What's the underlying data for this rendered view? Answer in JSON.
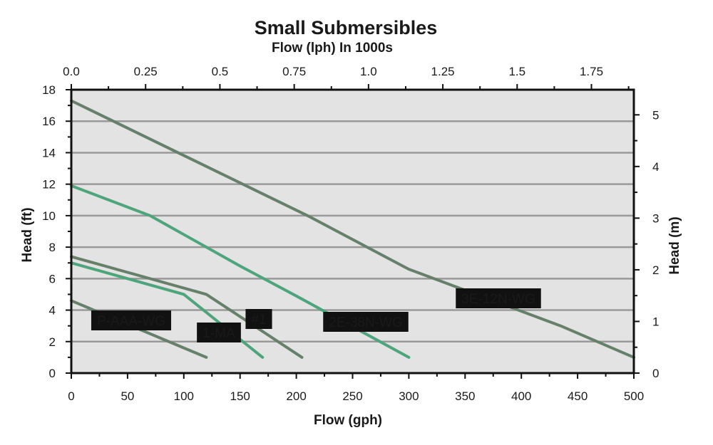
{
  "chart_data": {
    "type": "line",
    "title": "Small Submersibles",
    "subtitle": "Flow (lph) In 1000s",
    "xlabel": "Flow (gph)",
    "ylabel": "Head (ft)",
    "ylabel_right": "Head (m)",
    "xlim": [
      0,
      500
    ],
    "ylim": [
      0,
      18
    ],
    "x_ticks": [
      "0",
      "50",
      "100",
      "150",
      "200",
      "250",
      "300",
      "350",
      "400",
      "450",
      "500"
    ],
    "y_ticks": [
      "0",
      "2",
      "4",
      "6",
      "8",
      "10",
      "12",
      "14",
      "16",
      "18"
    ],
    "x2_ticks": [
      {
        "value": 0.0,
        "label": "0.0"
      },
      {
        "value": 0.25,
        "label": "0.25"
      },
      {
        "value": 0.5,
        "label": "0.5"
      },
      {
        "value": 0.75,
        "label": "0.75"
      },
      {
        "value": 1.0,
        "label": "1.0"
      },
      {
        "value": 1.25,
        "label": "1.25"
      },
      {
        "value": 1.5,
        "label": "1.5"
      },
      {
        "value": 1.75,
        "label": "1.75"
      }
    ],
    "y2_ticks": [
      {
        "value": 0,
        "label": "0"
      },
      {
        "value": 1,
        "label": "1"
      },
      {
        "value": 2,
        "label": "2"
      },
      {
        "value": 3,
        "label": "3"
      },
      {
        "value": 4,
        "label": "4"
      },
      {
        "value": 5,
        "label": "5"
      }
    ],
    "grid": "horizontal",
    "colors": {
      "plot_bg": "#e3e3e3",
      "grid": "#999999",
      "frame": "#111111",
      "label_bg": "#111111",
      "label_text": "#ffffff",
      "green": "#4ea57b",
      "gray_green": "#66806a"
    },
    "series": [
      {
        "name": "P-AAA-WG",
        "color": "#66806a",
        "points": [
          [
            0,
            4.6
          ],
          [
            120,
            1.0
          ]
        ]
      },
      {
        "name": "1-MA",
        "color": "#4ea57b",
        "points": [
          [
            0,
            7.0
          ],
          [
            50,
            6.0
          ],
          [
            100,
            5.0
          ],
          [
            170,
            1.0
          ]
        ]
      },
      {
        "name": "#1",
        "color": "#66806a",
        "points": [
          [
            0,
            7.4
          ],
          [
            50,
            6.4
          ],
          [
            100,
            5.4
          ],
          [
            120,
            5.0
          ],
          [
            205,
            1.0
          ]
        ]
      },
      {
        "name": "2E-38N-WG",
        "color": "#4ea57b",
        "points": [
          [
            0,
            11.9
          ],
          [
            70,
            10.0
          ],
          [
            150,
            6.8
          ],
          [
            200,
            4.9
          ],
          [
            300,
            1.0
          ]
        ]
      },
      {
        "name": "3E-12N-WG",
        "color": "#66806a",
        "points": [
          [
            0,
            17.3
          ],
          [
            210,
            10.0
          ],
          [
            300,
            6.6
          ],
          [
            435,
            3.0
          ],
          [
            500,
            1.0
          ]
        ]
      }
    ]
  }
}
